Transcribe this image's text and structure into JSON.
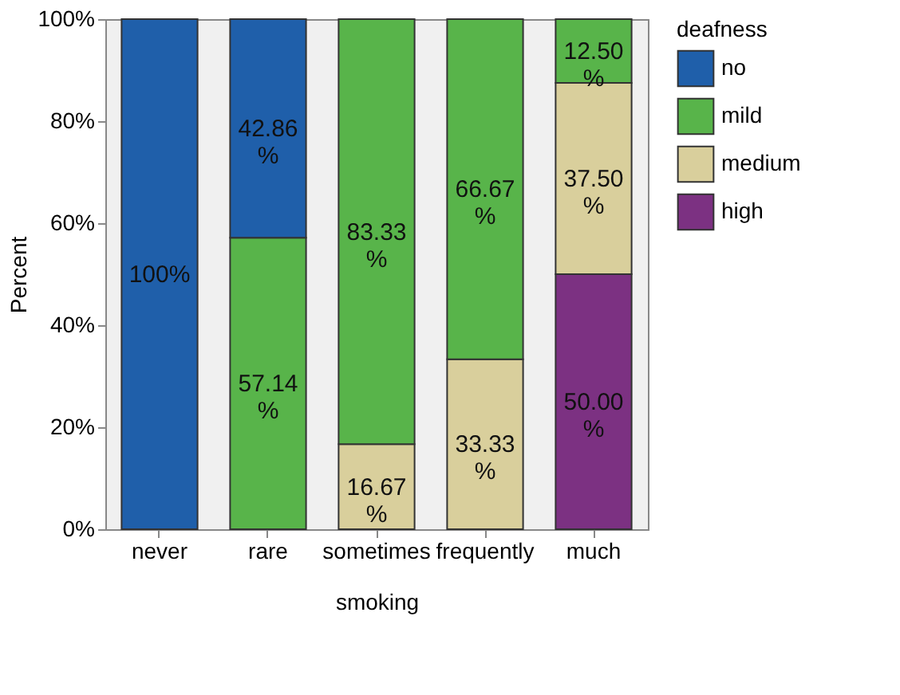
{
  "chart_data": {
    "type": "bar",
    "stacked": true,
    "xlabel": "smoking",
    "ylabel": "Percent",
    "legend_title": "deafness",
    "legend": "right",
    "categories": [
      "never",
      "rare",
      "sometimes",
      "frequently",
      "much"
    ],
    "series": [
      {
        "name": "high",
        "color": "#7c3182",
        "values": [
          null,
          null,
          null,
          null,
          50.0
        ],
        "value_labels": [
          null,
          null,
          null,
          null,
          "50.00 %"
        ]
      },
      {
        "name": "medium",
        "color": "#d9cf9c",
        "values": [
          null,
          null,
          16.67,
          33.33,
          37.5
        ],
        "value_labels": [
          null,
          null,
          "16.67 %",
          "33.33 %",
          "37.50 %"
        ]
      },
      {
        "name": "mild",
        "color": "#58b44a",
        "values": [
          null,
          57.14,
          83.33,
          66.67,
          12.5
        ],
        "value_labels": [
          null,
          "57.14 %",
          "83.33 %",
          "66.67 %",
          "12.50 %"
        ]
      },
      {
        "name": "no",
        "color": "#1f5faa",
        "values": [
          100,
          42.86,
          null,
          null,
          null
        ],
        "value_labels": [
          "100%",
          "42.86 %",
          null,
          null,
          null
        ]
      }
    ],
    "ylim": [
      0,
      100
    ],
    "yticks": [
      {
        "value": 0,
        "label": "0%"
      },
      {
        "value": 20,
        "label": "20%"
      },
      {
        "value": 40,
        "label": "40%"
      },
      {
        "value": 60,
        "label": "60%"
      },
      {
        "value": 80,
        "label": "80%"
      },
      {
        "value": 100,
        "label": "100%"
      }
    ],
    "grid": false
  }
}
